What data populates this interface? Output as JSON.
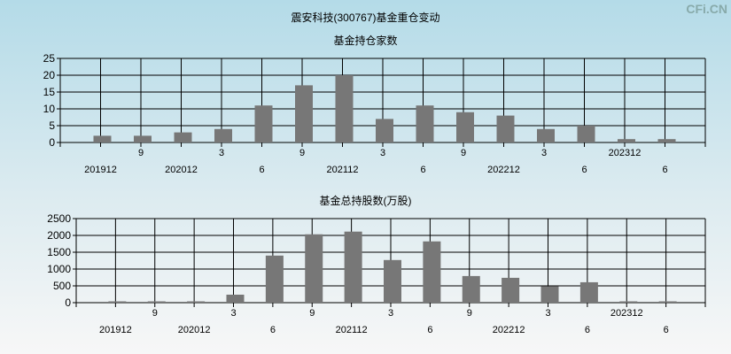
{
  "title": "震安科技(300767)基金重仓变动",
  "watermark": "CFi.CN",
  "chart_data": [
    {
      "type": "bar",
      "title": "基金持仓家数",
      "categories": [
        "201912",
        "9",
        "202012",
        "3",
        "6",
        "9",
        "202112",
        "3",
        "6",
        "9",
        "202212",
        "3",
        "6",
        "202312",
        "6"
      ],
      "values": [
        2,
        2,
        3,
        4,
        11,
        17,
        20,
        7,
        11,
        9,
        8,
        4,
        5,
        1,
        1
      ],
      "ylim": [
        0,
        25
      ],
      "yticks": [
        0,
        5,
        10,
        15,
        20,
        25
      ],
      "grid": true,
      "color": "#e82020"
    },
    {
      "type": "bar",
      "title": "基金总持股数(万股)",
      "categories": [
        "201912",
        "9",
        "202012",
        "3",
        "6",
        "9",
        "202112",
        "3",
        "6",
        "9",
        "202212",
        "3",
        "6",
        "202312",
        "6"
      ],
      "values": [
        20,
        20,
        20,
        238,
        1400,
        2033,
        2113,
        1268,
        1822,
        792,
        739,
        484,
        607,
        20,
        20
      ],
      "ylim": [
        0,
        2500
      ],
      "yticks": [
        0,
        500,
        1000,
        1500,
        2000,
        2500
      ],
      "grid": true,
      "color": "#2a2ae8"
    }
  ]
}
